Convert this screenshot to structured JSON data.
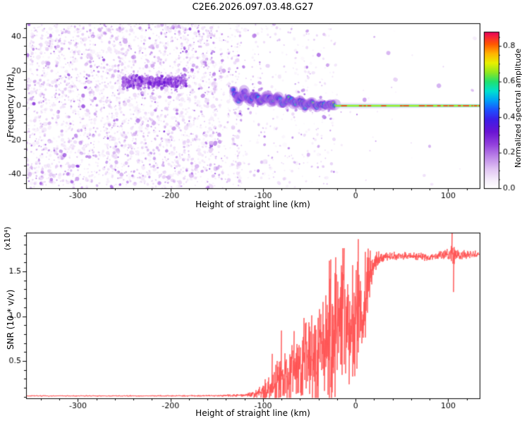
{
  "title": "C2E6.2026.097.03.48.G27",
  "chart_data": [
    {
      "type": "heatmap",
      "title": "C2E6.2026.097.03.48.G27",
      "xlabel": "Height of straight line (km)",
      "ylabel": "Frequency (Hz)",
      "xlim": [
        -356,
        134
      ],
      "ylim": [
        -48,
        48
      ],
      "xticks": [
        -300,
        -200,
        -100,
        0,
        100
      ],
      "yticks": [
        -40,
        -20,
        0,
        20,
        40
      ],
      "x_minor_step": 20,
      "y_minor_step": 5,
      "colorbar": {
        "label": "Normalized spectral amplitude",
        "ticks": [
          0.0,
          0.2,
          0.4,
          0.6,
          0.8
        ],
        "minor_step": 0.05,
        "vmin": 0.0,
        "vmax": 0.88,
        "stops": [
          [
            0.0,
            "#ffffff"
          ],
          [
            0.05,
            "#f6eefb"
          ],
          [
            0.12,
            "#e2c6f4"
          ],
          [
            0.2,
            "#bd86e8"
          ],
          [
            0.28,
            "#9340dd"
          ],
          [
            0.36,
            "#6a14d4"
          ],
          [
            0.44,
            "#3c1ee8"
          ],
          [
            0.5,
            "#1e50ff"
          ],
          [
            0.56,
            "#00a0f8"
          ],
          [
            0.62,
            "#00e0d0"
          ],
          [
            0.68,
            "#20e070"
          ],
          [
            0.74,
            "#90e820"
          ],
          [
            0.8,
            "#e8f000"
          ],
          [
            0.86,
            "#ffb400"
          ],
          [
            0.92,
            "#ff5800"
          ],
          [
            0.97,
            "#f5203c"
          ],
          [
            1.0,
            "#e0005f"
          ]
        ]
      },
      "signal_track_hz_vs_km": [
        [
          -133,
          9
        ],
        [
          -126,
          4
        ],
        [
          -120,
          7
        ],
        [
          -114,
          3
        ],
        [
          -108,
          6
        ],
        [
          -102,
          2
        ],
        [
          -96,
          5
        ],
        [
          -90,
          3
        ],
        [
          -84,
          5
        ],
        [
          -78,
          1
        ],
        [
          -72,
          4
        ],
        [
          -66,
          1
        ],
        [
          -60,
          3
        ],
        [
          -54,
          0
        ],
        [
          -48,
          2
        ],
        [
          -43,
          -1
        ],
        [
          -38,
          1
        ],
        [
          -33,
          0
        ],
        [
          -28,
          1
        ],
        [
          -22,
          0
        ]
      ],
      "carrier_line": {
        "x_start": -22,
        "x_end": 134,
        "freq": 0
      },
      "noise_regions": [
        {
          "x": [
            -356,
            -163
          ],
          "density": 2600,
          "streaks": false
        },
        {
          "x": [
            -163,
            -122
          ],
          "density": 430,
          "streaks": true
        },
        {
          "x": [
            -122,
            -20
          ],
          "density": 330,
          "streaks": false
        },
        {
          "x": [
            -20,
            134
          ],
          "density": 30,
          "streaks": false
        }
      ],
      "dense_clump": {
        "x": [
          -252,
          -183
        ],
        "freq_center": 14,
        "freq_spread": 5,
        "count": 650
      }
    },
    {
      "type": "line",
      "xlabel": "Height of straight line (km)",
      "ylabel": "SNR (10 * v/v)",
      "y_scale_label": "(x10⁴)",
      "series_color": "#ff4d4d",
      "xlim": [
        -356,
        134
      ],
      "ylim": [
        0.083,
        1.933
      ],
      "xticks": [
        -300,
        -200,
        -100,
        0,
        100
      ],
      "yticks": [
        0.5,
        1.0,
        1.5
      ],
      "x_minor_step": 20,
      "y_minor_step": 0.1,
      "profile": {
        "x": [
          -356,
          -220,
          -150,
          -120,
          -108,
          -100,
          -95,
          -90,
          -85,
          -80,
          -75,
          -70,
          -65,
          -60,
          -55,
          -50,
          -45,
          -40,
          -35,
          -30,
          -26,
          -22,
          -18,
          -14,
          -11,
          -8,
          -5,
          -2,
          0,
          2,
          4,
          6,
          8,
          10,
          13,
          16,
          20,
          25,
          30,
          40,
          60,
          80,
          95,
          100,
          103,
          106,
          110,
          120,
          134
        ],
        "mean": [
          0.11,
          0.11,
          0.112,
          0.118,
          0.13,
          0.16,
          0.19,
          0.22,
          0.26,
          0.3,
          0.33,
          0.36,
          0.4,
          0.44,
          0.48,
          0.52,
          0.56,
          0.6,
          0.66,
          0.72,
          0.78,
          0.85,
          0.92,
          1.0,
          1.05,
          0.95,
          0.85,
          0.82,
          0.88,
          1.0,
          1.1,
          1.05,
          1.0,
          1.15,
          1.35,
          1.5,
          1.6,
          1.64,
          1.66,
          1.67,
          1.67,
          1.66,
          1.68,
          1.7,
          1.68,
          1.66,
          1.69,
          1.68,
          1.69
        ],
        "noise": [
          0.006,
          0.006,
          0.008,
          0.015,
          0.04,
          0.09,
          0.13,
          0.18,
          0.22,
          0.27,
          0.3,
          0.33,
          0.36,
          0.38,
          0.42,
          0.45,
          0.48,
          0.52,
          0.58,
          0.65,
          0.7,
          0.72,
          0.7,
          0.68,
          0.65,
          0.62,
          0.58,
          0.55,
          0.55,
          0.58,
          0.6,
          0.55,
          0.5,
          0.45,
          0.35,
          0.22,
          0.12,
          0.07,
          0.05,
          0.04,
          0.035,
          0.035,
          0.04,
          0.06,
          0.12,
          0.1,
          0.05,
          0.04,
          0.035
        ]
      },
      "spikes": [
        {
          "x": -90,
          "v": 0.58
        },
        {
          "x": -80,
          "v": 0.84
        },
        {
          "x": -28,
          "v": 1.62
        },
        {
          "x": -12,
          "v": 1.76
        },
        {
          "x": -3,
          "v": 1.57
        },
        {
          "x": 3,
          "v": 1.86
        },
        {
          "x": 104,
          "v": 1.93
        },
        {
          "x": 105.5,
          "v": 1.27
        }
      ]
    }
  ]
}
